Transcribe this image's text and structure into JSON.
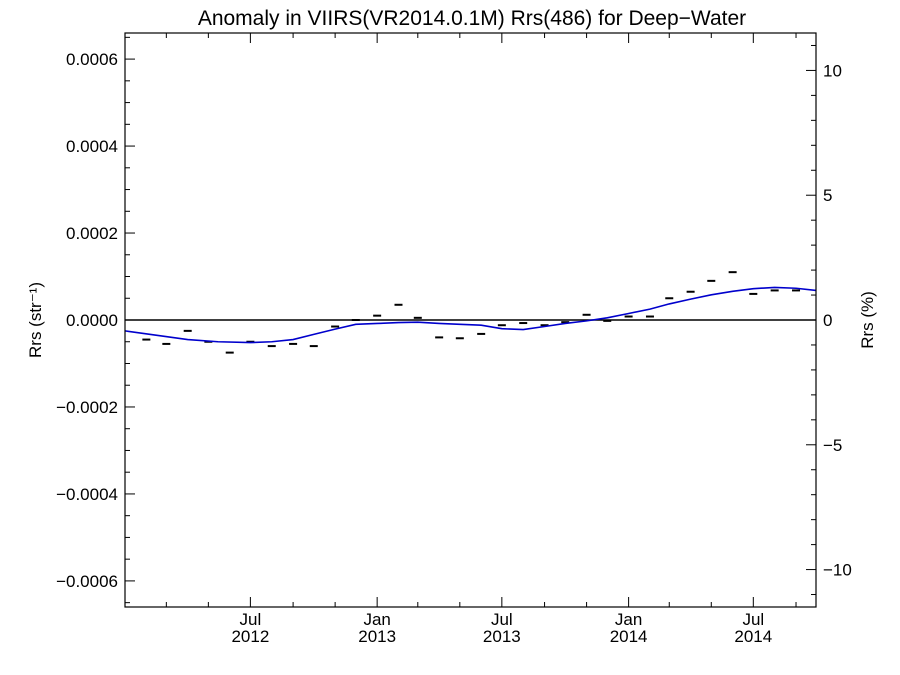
{
  "chart_data": {
    "type": "scatter",
    "title": "Anomaly in VIIRS(VR2014.0.1M) Rrs(486) for Deep−Water",
    "xlabel": "",
    "ylabel_left": "Rrs (str⁻¹)",
    "ylabel_right": "Rrs (%)",
    "xlim": [
      "2012-01-01",
      "2014-09-30"
    ],
    "ylim_left": [
      -0.00066,
      0.00066
    ],
    "ylim_right": [
      -11.5,
      11.5
    ],
    "zero_line": true,
    "x_ticks": [
      {
        "date": "2012-07-01",
        "line1": "Jul",
        "line2": "2012"
      },
      {
        "date": "2013-01-01",
        "line1": "Jan",
        "line2": "2013"
      },
      {
        "date": "2013-07-01",
        "line1": "Jul",
        "line2": "2013"
      },
      {
        "date": "2014-01-01",
        "line1": "Jan",
        "line2": "2014"
      },
      {
        "date": "2014-07-01",
        "line1": "Jul",
        "line2": "2014"
      }
    ],
    "left_ticks": [
      {
        "value": 0.0006,
        "label": "0.0006"
      },
      {
        "value": 0.0004,
        "label": "0.0004"
      },
      {
        "value": 0.0002,
        "label": "0.0002"
      },
      {
        "value": 0.0,
        "label": "0.0000"
      },
      {
        "value": -0.0002,
        "label": "−0.0002"
      },
      {
        "value": -0.0004,
        "label": "−0.0004"
      },
      {
        "value": -0.0006,
        "label": "−0.0006"
      }
    ],
    "right_ticks": [
      {
        "value": 10,
        "label": "10"
      },
      {
        "value": 5,
        "label": "5"
      },
      {
        "value": 0,
        "label": "0"
      },
      {
        "value": -5,
        "label": "−5"
      },
      {
        "value": -10,
        "label": "−10"
      }
    ],
    "series": [
      {
        "type": "scatter",
        "marker": "dash",
        "color": "#000000",
        "x": [
          "2012-02-01",
          "2012-03-01",
          "2012-04-01",
          "2012-05-01",
          "2012-06-01",
          "2012-07-01",
          "2012-08-01",
          "2012-09-01",
          "2012-10-01",
          "2012-11-01",
          "2012-12-01",
          "2013-01-01",
          "2013-02-01",
          "2013-03-01",
          "2013-04-01",
          "2013-05-01",
          "2013-06-01",
          "2013-07-01",
          "2013-08-01",
          "2013-09-01",
          "2013-10-01",
          "2013-11-01",
          "2013-12-01",
          "2014-01-01",
          "2014-02-01",
          "2014-03-01",
          "2014-04-01",
          "2014-05-01",
          "2014-06-01",
          "2014-07-01",
          "2014-08-01",
          "2014-09-01"
        ],
        "values": [
          -4.5e-05,
          -5.5e-05,
          -2.5e-05,
          -5e-05,
          -7.5e-05,
          -5e-05,
          -6e-05,
          -5.5e-05,
          -6e-05,
          -1.5e-05,
          0.0,
          1e-05,
          3.5e-05,
          5e-06,
          -4e-05,
          -4.2e-05,
          -3.2e-05,
          -1.2e-05,
          -7e-06,
          -1.2e-05,
          -5e-06,
          1.2e-05,
          -2e-06,
          8e-06,
          8e-06,
          5e-05,
          6.5e-05,
          9e-05,
          0.00011,
          6e-05,
          6.8e-05,
          6.8e-05
        ]
      },
      {
        "type": "line",
        "color": "#0000cc",
        "x": [
          "2012-01-01",
          "2012-02-15",
          "2012-04-01",
          "2012-05-15",
          "2012-07-01",
          "2012-08-01",
          "2012-09-01",
          "2012-10-01",
          "2012-11-01",
          "2012-12-01",
          "2013-01-01",
          "2013-02-01",
          "2013-03-01",
          "2013-04-01",
          "2013-05-01",
          "2013-06-01",
          "2013-07-01",
          "2013-08-01",
          "2013-09-01",
          "2013-10-01",
          "2013-11-01",
          "2013-12-01",
          "2014-01-01",
          "2014-02-01",
          "2014-03-01",
          "2014-04-01",
          "2014-05-01",
          "2014-06-01",
          "2014-07-01",
          "2014-08-01",
          "2014-09-01",
          "2014-09-30"
        ],
        "values": [
          -2.5e-05,
          -3.5e-05,
          -4.5e-05,
          -5e-05,
          -5.2e-05,
          -5e-05,
          -4.5e-05,
          -3.3e-05,
          -2.1e-05,
          -1e-05,
          -8e-06,
          -6e-06,
          -5e-06,
          -8e-06,
          -1e-05,
          -1.2e-05,
          -2e-05,
          -2.2e-05,
          -1.5e-05,
          -8e-06,
          -2e-06,
          5e-06,
          1.5e-05,
          2.5e-05,
          3.7e-05,
          4.8e-05,
          5.8e-05,
          6.6e-05,
          7.2e-05,
          7.5e-05,
          7.3e-05,
          6.8e-05
        ]
      }
    ]
  }
}
